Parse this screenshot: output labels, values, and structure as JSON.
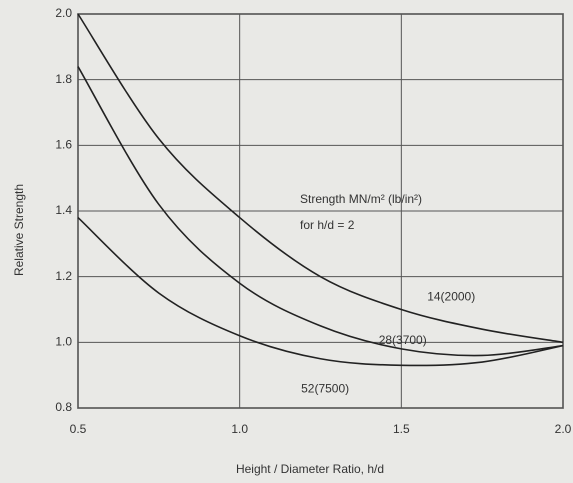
{
  "chart_data": {
    "type": "line",
    "x_label": "Height / Diameter Ratio, h/d",
    "y_label": "Relative Strength",
    "annotation": [
      "Strength MN/m² (lb/in²)",
      "for h/d = 2"
    ],
    "x": [
      0.5,
      0.75,
      1.0,
      1.25,
      1.5,
      1.75,
      2.0
    ],
    "series": [
      {
        "name": "14(2000)",
        "color": "#222222",
        "values": [
          2.0,
          1.62,
          1.38,
          1.2,
          1.1,
          1.04,
          1.0
        ]
      },
      {
        "name": "28(3700)",
        "color": "#222222",
        "values": [
          1.84,
          1.42,
          1.18,
          1.05,
          0.98,
          0.96,
          0.99
        ]
      },
      {
        "name": "52(7500)",
        "color": "#222222",
        "values": [
          1.38,
          1.15,
          1.02,
          0.95,
          0.93,
          0.94,
          0.99
        ]
      }
    ],
    "xlim": [
      0.5,
      2.0
    ],
    "xticks": [
      0.5,
      {
        "value": 1,
        "label": "1.0"
      },
      1.5,
      {
        "value": 2,
        "label": "2.0"
      }
    ],
    "ylim": [
      0.8,
      2.0
    ],
    "yticks": [
      0.8,
      {
        "value": 1,
        "label": "1.0"
      },
      1.2,
      1.4,
      1.6,
      1.8,
      {
        "value": 2,
        "label": "2.0"
      }
    ],
    "grid": true
  }
}
